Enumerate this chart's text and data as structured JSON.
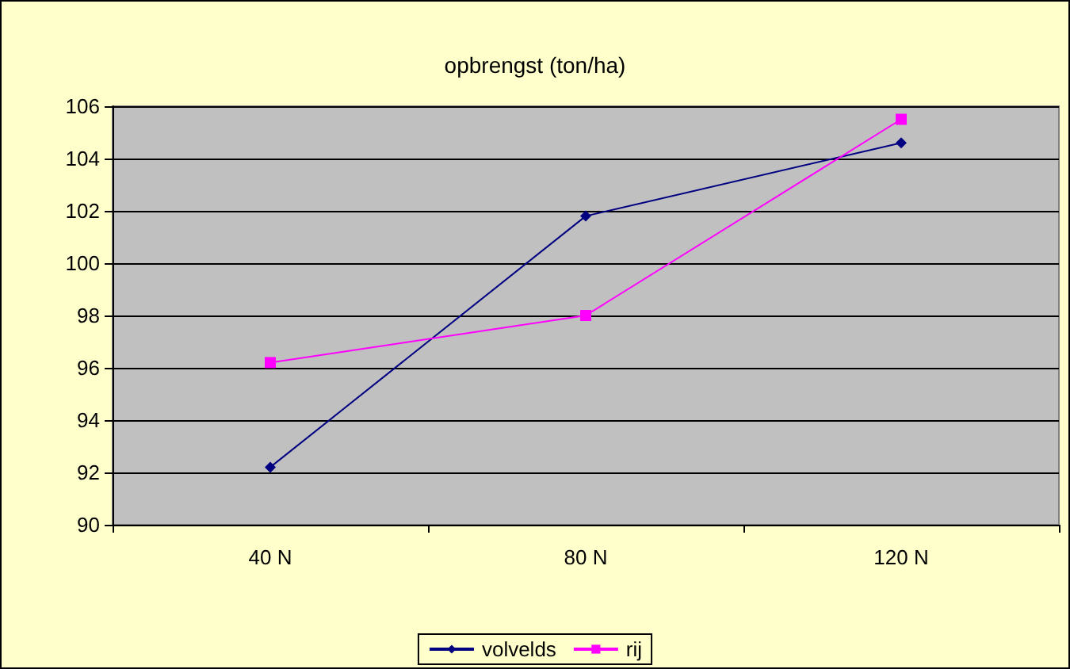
{
  "chart_data": {
    "type": "line",
    "title": "opbrengst (ton/ha)",
    "categories": [
      "40 N",
      "80 N",
      "120 N"
    ],
    "series": [
      {
        "name": "volvelds",
        "color": "#000080",
        "values": [
          92.2,
          101.8,
          104.6
        ],
        "marker": "diamond"
      },
      {
        "name": "rij",
        "color": "#ff00ff",
        "values": [
          96.2,
          98.0,
          105.5
        ],
        "marker": "square"
      }
    ],
    "ylim": [
      90,
      106
    ],
    "yticks": [
      90,
      92,
      94,
      96,
      98,
      100,
      102,
      104,
      106
    ],
    "grid": "y",
    "legend": "bottom",
    "line_style": "solid"
  }
}
